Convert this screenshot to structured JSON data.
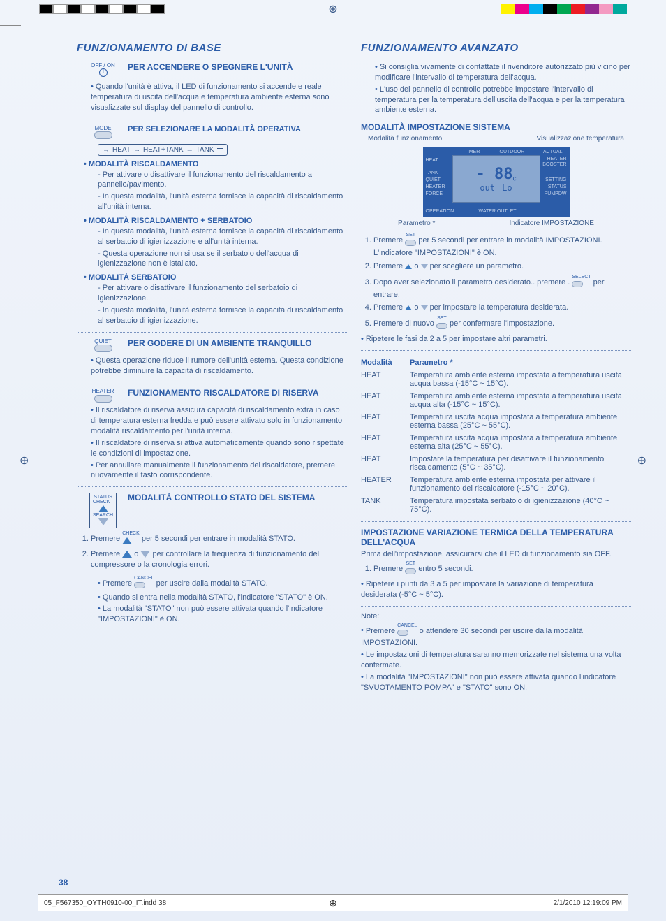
{
  "registration": {
    "left_swatches": [
      "#000000",
      "#ffffff",
      "#000000",
      "#ffffff",
      "#000000",
      "#ffffff",
      "#000000",
      "#ffffff",
      "#000000"
    ],
    "right_swatches": [
      "#fff200",
      "#ec008c",
      "#00aeef",
      "#000000",
      "#00a651",
      "#ed1c24",
      "#92278f",
      "#f49ac1",
      "#00a99d"
    ]
  },
  "left": {
    "title": "FUNZIONAMENTO DI BASE",
    "s1": {
      "btn": "OFF / ON",
      "heading": "PER ACCENDERE O SPEGNERE L'UNITÀ",
      "b1": "Quando l'unità è attiva, il LED di funzionamento si accende e reale temperatura di uscita dell'acqua e temperatura ambiente esterna sono visualizzate sul display del pannello di controllo."
    },
    "s2": {
      "btn": "MODE",
      "heading": "PER SELEZIONARE LA MODALITÀ OPERATIVA",
      "flow": [
        "HEAT",
        "HEAT+TANK",
        "TANK"
      ]
    },
    "m1": {
      "title": "MODALITÀ RISCALDAMENTO",
      "items": [
        "Per attivare o disattivare il funzionamento del riscaldamento a pannello/pavimento.",
        "In questa modalità, l'unità esterna fornisce la capacità di riscaldamento all'unità interna."
      ]
    },
    "m2": {
      "title": "MODALITÀ RISCALDAMENTO + SERBATOIO",
      "items": [
        "In questa modalità, l'unità esterna fornisce la capacità di riscaldamento al serbatoio di igienizzazione e all'unità interna.",
        "Questa operazione non si usa se il serbatoio dell'acqua di igienizzazione non è istallato."
      ]
    },
    "m3": {
      "title": "MODALITÀ SERBATOIO",
      "items": [
        "Per attivare o disattivare il funzionamento del serbatoio di igienizzazione.",
        "In questa modalità, l'unità esterna fornisce la capacità di riscaldamento al serbatoio di igienizzazione."
      ]
    },
    "s3": {
      "btn": "QUIET",
      "heading": "PER GODERE DI UN AMBIENTE TRANQUILLO",
      "b1": "Questa operazione riduce il rumore dell'unità esterna. Questa condizione potrebbe diminuire la capacità di riscaldamento."
    },
    "s4": {
      "btn": "HEATER",
      "heading": "FUNZIONAMENTO RISCALDATORE DI RISERVA",
      "items": [
        "Il riscaldatore di riserva assicura capacità di riscaldamento extra in caso di temperatura esterna fredda e può essere attivato solo in funzionamento modalità riscaldamento per l'unità interna.",
        "Il riscaldatore di riserva si attiva automaticamente quando sono rispettate le condizioni di impostazione.",
        "Per annullare manualmente il funzionamento del riscaldatore, premere nuovamente il tasto corrispondente."
      ]
    },
    "s5": {
      "btn_top": "STATUS",
      "btn_check": "CHECK",
      "btn_search": "SEARCH",
      "heading": "MODALITÀ CONTROLLO STATO DEL SISTEMA",
      "steps": [
        {
          "pre": "Premere",
          "btn": "CHECK",
          "post": "per 5 secondi per entrare in modalità STATO."
        },
        {
          "pre": "Premere",
          "post": "per controllare la frequenza di funzionamento del compressore o la cronologia errori."
        }
      ],
      "notes": [
        {
          "pre": "Premere",
          "btn": "CANCEL",
          "post": "per uscire dalla modalità STATO."
        },
        {
          "text": "Quando si entra nella modalità STATO, l'indicatore \"STATO\" è ON."
        },
        {
          "text": "La modalità \"STATO\" non può essere attivata quando l'indicatore \"IMPOSTAZIONI\" è ON."
        }
      ]
    }
  },
  "right": {
    "title": "FUNZIONAMENTO AVANZATO",
    "intro": [
      "Si consiglia vivamente di contattate il rivenditore autorizzato più vicino per modificare l'intervallo di temperatura dell'acqua.",
      "L'uso del pannello di controllo potrebbe impostare l'intervallo di temperatura per la temperatura dell'uscita dell'acqua e per la temperatura ambiente esterna."
    ],
    "s1": {
      "heading": "MODALITÀ IMPOSTAZIONE SISTEMA",
      "cap_left": "Modalità funzionamento",
      "cap_right": "Visualizzazione temperatura",
      "cap2_left": "Parametro *",
      "cap2_right": "Indicatore IMPOSTAZIONE",
      "lcd": {
        "timer": "TIMER",
        "outdoor": "OUTDOOR",
        "actual": "ACTUAL",
        "heat": "HEAT",
        "tank": "TANK",
        "quiet": "QUIET",
        "heater": "HEATER",
        "force": "FORCE",
        "operation": "OPERATION",
        "booster": "BOOSTER",
        "setting": "SETTING",
        "status": "STATUS",
        "pumpdw": "PUMPDW",
        "water": "WATER OUTLET",
        "big": "- 88",
        "unit": "c",
        "out": "out",
        "lo": "Lo"
      },
      "steps": [
        {
          "pre": "Premere",
          "btn": "SET",
          "post": "per 5 secondi per entrare in modalità IMPOSTAZIONI. L'indicatore \"IMPOSTAZIONI\" è ON."
        },
        {
          "pre": "Premere",
          "mid": "o",
          "post": "per scegliere un parametro."
        },
        {
          "text": "Dopo aver selezionato il parametro desiderato.. premere .",
          "btn": "SELECT",
          "post2": "per entrare."
        },
        {
          "pre": "Premere",
          "mid": "o",
          "post": "per impostare la temperatura desiderata."
        },
        {
          "pre": "Premere di nuovo",
          "btn": "SET",
          "post": "per confermare l'impostazione."
        }
      ],
      "repeat": "Ripetere le fasi da 2 a 5 per impostare altri parametri."
    },
    "table": {
      "h1": "Modalità",
      "h2": "Parametro *",
      "rows": [
        [
          "HEAT",
          "Temperatura ambiente esterna impostata a temperatura uscita acqua bassa (-15°C ~ 15°C)."
        ],
        [
          "HEAT",
          "Temperatura ambiente esterna impostata a temperatura uscita acqua alta (-15°C ~ 15°C)."
        ],
        [
          "HEAT",
          "Temperatura uscita acqua impostata a temperatura ambiente esterna bassa (25°C ~ 55°C)."
        ],
        [
          "HEAT",
          "Temperatura uscita acqua impostata a temperatura ambiente esterna alta (25°C ~ 55°C)."
        ],
        [
          "HEAT",
          "Impostare la temperatura per disattivare il funzionamento riscaldamento (5°C ~ 35°C)."
        ],
        [
          "HEATER",
          "Temperatura ambiente esterna impostata per attivare il funzionamento del riscaldatore (-15°C ~ 20°C)."
        ],
        [
          "TANK",
          "Temperatura impostata serbatoio di igienizzazione (40°C ~ 75°C)."
        ]
      ]
    },
    "s2": {
      "heading": "IMPOSTAZIONE VARIAZIONE TERMICA DELLA TEMPERATURA DELL'ACQUA",
      "pre": "Prima dell'impostazione, assicurarsi che il LED di funzionamento sia OFF.",
      "step1_pre": "Premere",
      "step1_btn": "SET",
      "step1_post": "entro 5 secondi.",
      "repeat": "Ripetere i punti da 3 a 5 per impostare la variazione di temperatura desiderata (-5°C ~ 5°C)."
    },
    "notes_title": "Note:",
    "notes": [
      {
        "pre": "Premere",
        "btn": "CANCEL",
        "post": "o attendere 30 secondi per uscire dalla modalità IMPOSTAZIONI."
      },
      {
        "text": "Le impostazioni di temperatura saranno memorizzate nel sistema una volta confermate."
      },
      {
        "text": "La modalità \"IMPOSTAZIONI\" non può essere attivata quando l'indicatore \"SVUOTAMENTO POMPA\" e \"STATO\" sono ON."
      }
    ]
  },
  "page_num": "38",
  "footer": {
    "file": "05_F567350_OYTH0910-00_IT.indd   38",
    "date": "2/1/2010   12:19:09 PM"
  }
}
